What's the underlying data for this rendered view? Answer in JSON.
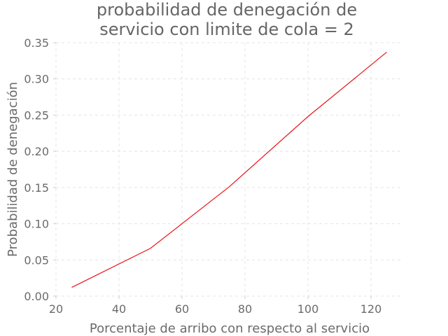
{
  "chart_data": {
    "type": "line",
    "title_lines": [
      "probabilidad de denegación de",
      "servicio con limite de cola = 2"
    ],
    "xlabel": "Porcentaje de arribo con respecto al servicio",
    "ylabel": "Probabilidad de denegación",
    "xlim": [
      20,
      130
    ],
    "ylim": [
      0,
      0.35
    ],
    "x_ticks": [
      20,
      40,
      60,
      80,
      100,
      120
    ],
    "y_ticks": [
      0.0,
      0.05,
      0.1,
      0.15,
      0.2,
      0.25,
      0.3,
      0.35
    ],
    "y_tick_labels": [
      "0.00",
      "0.05",
      "0.10",
      "0.15",
      "0.20",
      "0.25",
      "0.30",
      "0.35"
    ],
    "grid": true,
    "series": [
      {
        "color": "#e8141a",
        "x": [
          25,
          50,
          75,
          100,
          125
        ],
        "y": [
          0.012,
          0.066,
          0.151,
          0.248,
          0.337
        ]
      }
    ]
  }
}
